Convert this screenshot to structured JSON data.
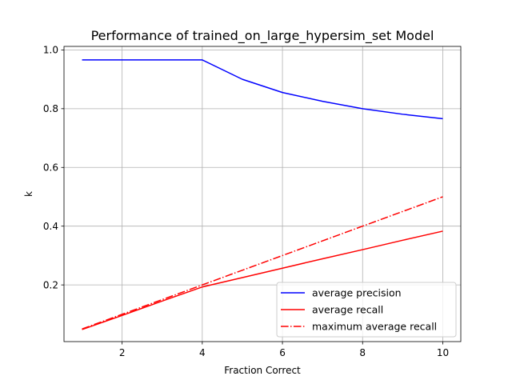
{
  "chart_data": {
    "type": "line",
    "title": "Performance of trained_on_large_hypersim_set Model",
    "xlabel": "Fraction Correct",
    "ylabel": "k",
    "xlim": [
      0.55,
      10.45
    ],
    "ylim": [
      0.007,
      1.012
    ],
    "x_ticks": [
      2,
      4,
      6,
      8,
      10
    ],
    "y_ticks": [
      0.2,
      0.4,
      0.6,
      0.8,
      1.0
    ],
    "x_tick_labels": [
      "2",
      "4",
      "6",
      "8",
      "10"
    ],
    "y_tick_labels": [
      "0.2",
      "0.4",
      "0.6",
      "0.8",
      "1.0"
    ],
    "grid": true,
    "legend_position": "lower right",
    "x": [
      1,
      2,
      3,
      4,
      5,
      6,
      7,
      8,
      9,
      10
    ],
    "series": [
      {
        "name": "average precision",
        "color": "#0000ff",
        "style": "solid",
        "values": [
          0.966,
          0.966,
          0.966,
          0.966,
          0.9,
          0.855,
          0.825,
          0.8,
          0.781,
          0.766
        ]
      },
      {
        "name": "average recall",
        "color": "#ff0000",
        "style": "solid",
        "values": [
          0.048,
          0.096,
          0.145,
          0.193,
          0.225,
          0.257,
          0.289,
          0.32,
          0.352,
          0.383
        ]
      },
      {
        "name": "maximum average recall",
        "color": "#ff0000",
        "style": "dashdot",
        "values": [
          0.05,
          0.1,
          0.15,
          0.2,
          0.25,
          0.3,
          0.35,
          0.4,
          0.45,
          0.5
        ]
      }
    ]
  }
}
